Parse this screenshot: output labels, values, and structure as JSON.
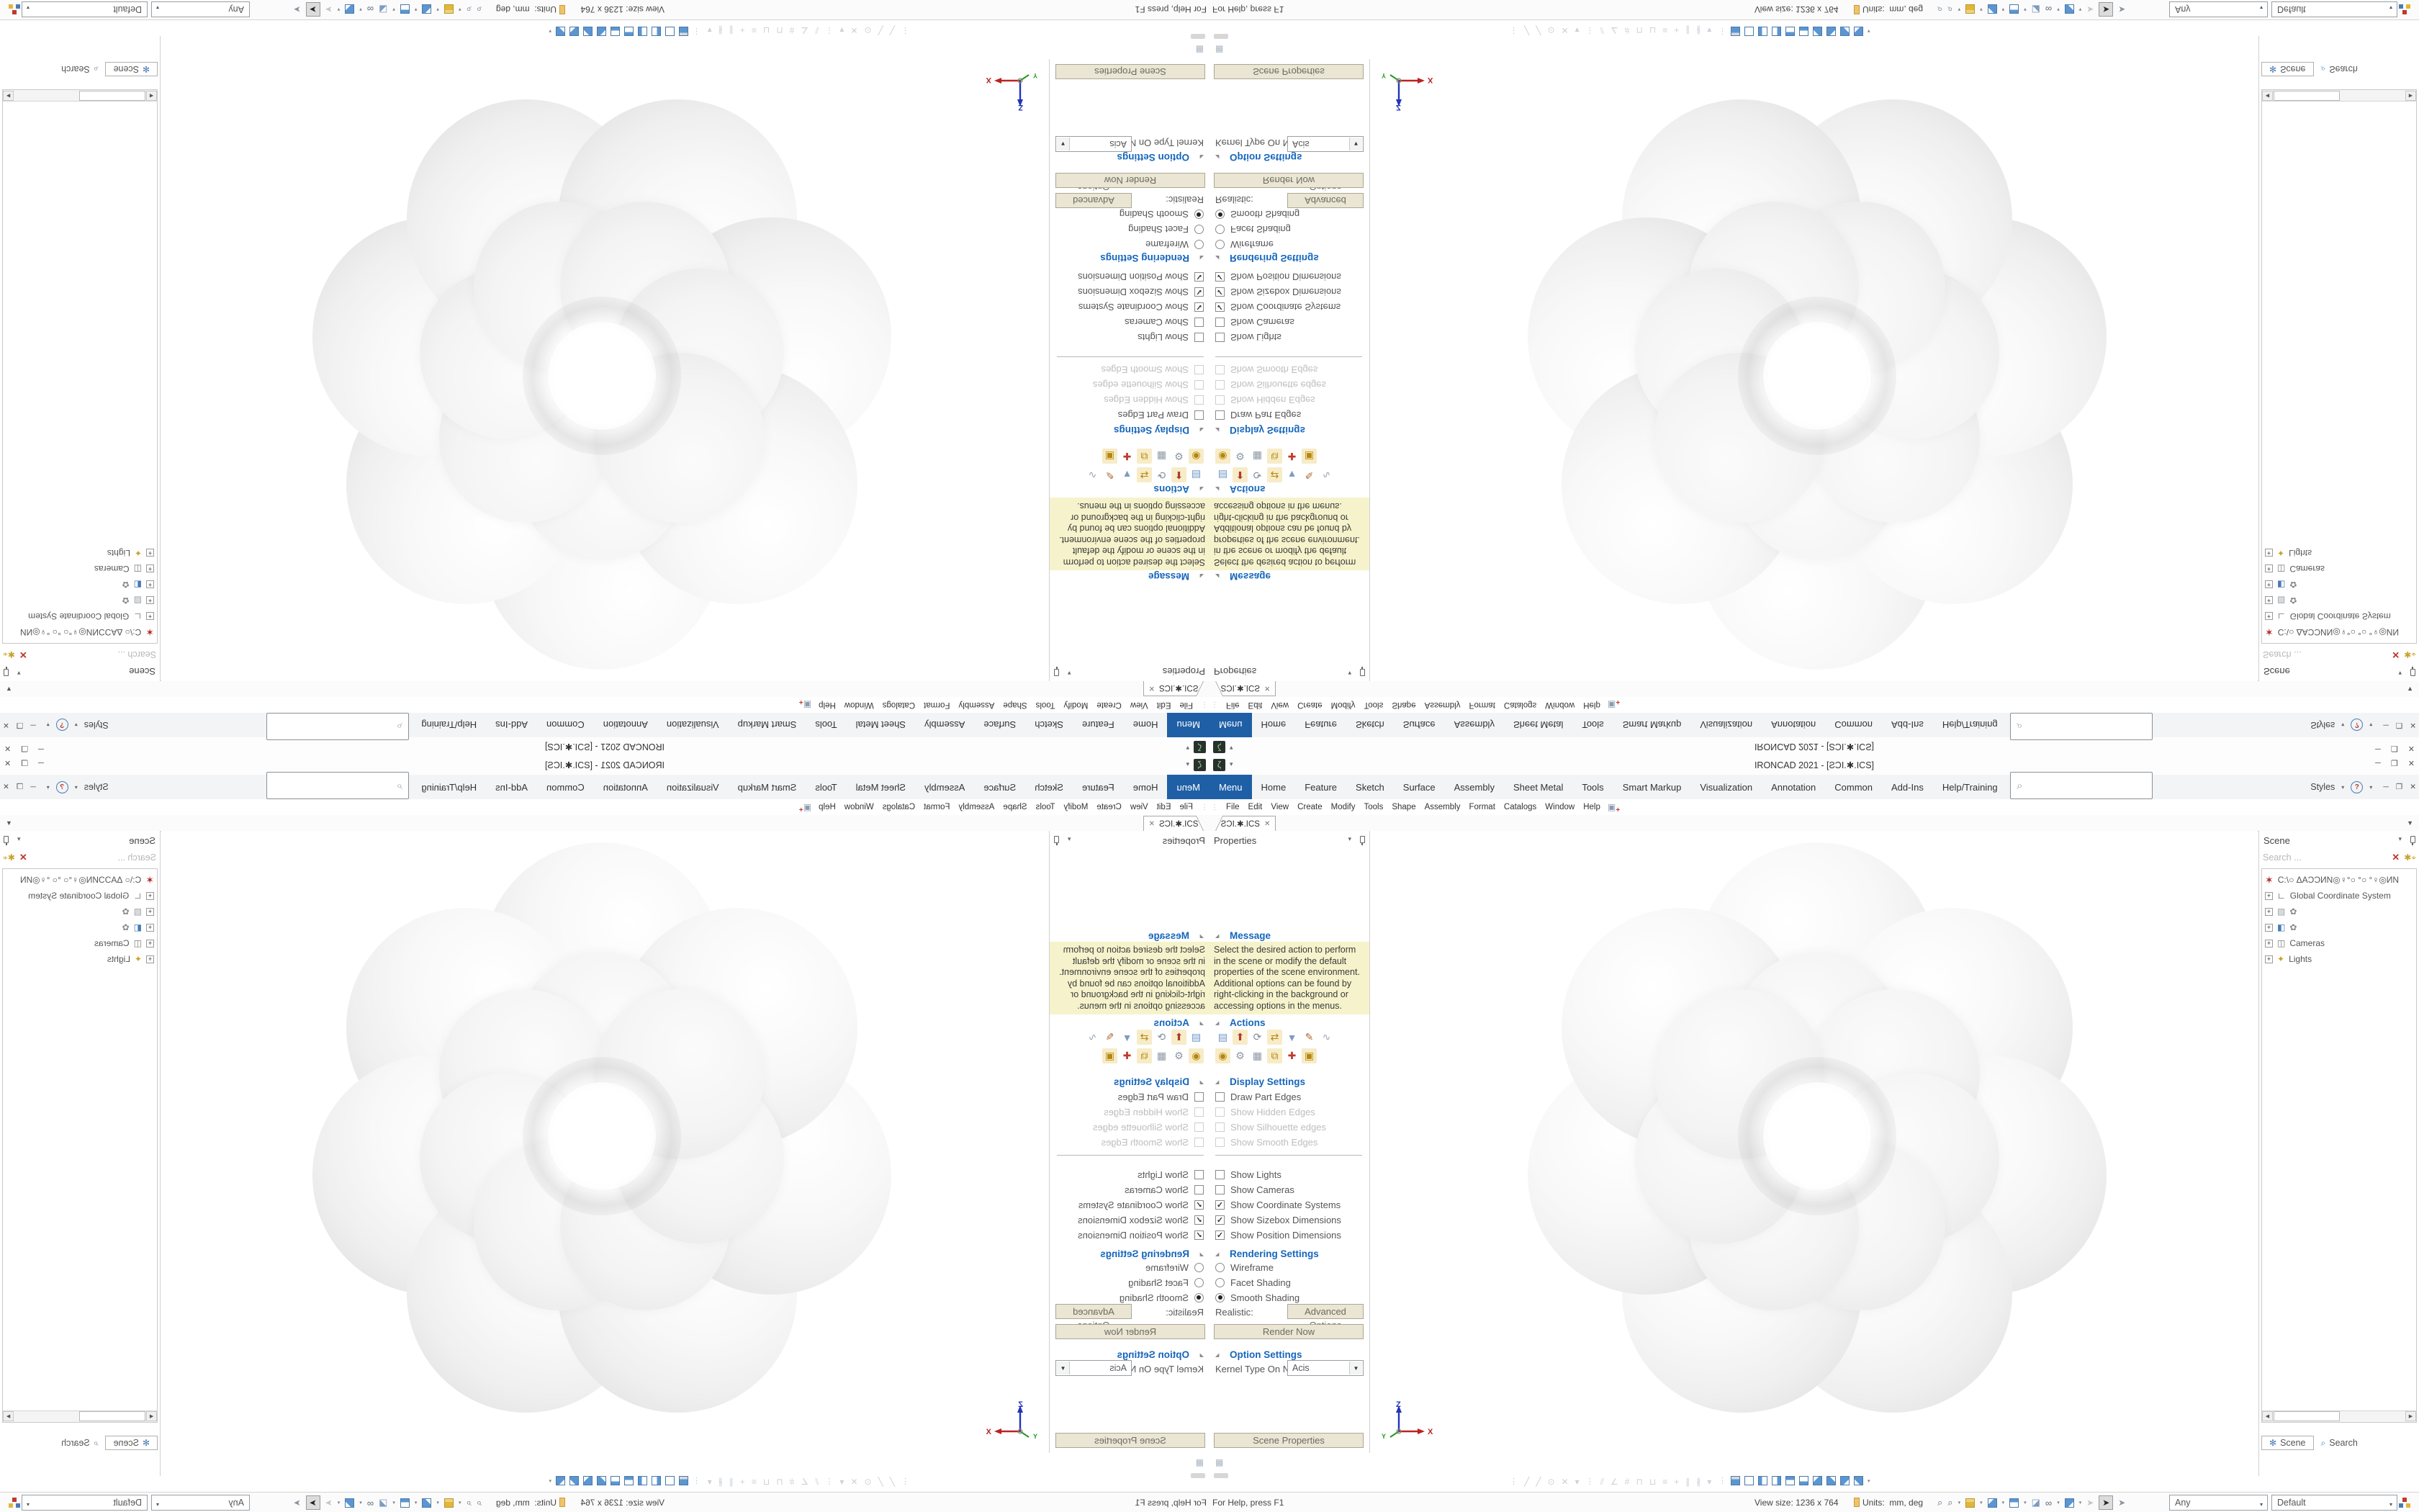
{
  "colors": {
    "accent_tab_blue": "#1f5fa6",
    "section_header_blue": "#1566bb",
    "message_bg": "#f6f3cc",
    "button_bg": "#eae6d3",
    "cube_blue": "#5b96d2",
    "cube_gold": "#e0b73a",
    "close_red": "#c0392b"
  },
  "glyphs": {
    "down_arrow": "▾",
    "overflow_arrow": "▼",
    "close": "✕",
    "minimize": "─",
    "restore": "❐",
    "grip": "⋮",
    "expander": "+",
    "left_arrow": "◀",
    "right_arrow": "▶",
    "section_tri": "◢",
    "logo": "ζ",
    "qat": "▾"
  },
  "title_bar": {
    "title": "IRONCAD 2021 - [ƧƆI.✱.ICS]"
  },
  "ribbon": {
    "tabs": [
      "Menu",
      "Home",
      "Feature",
      "Sketch",
      "Surface",
      "Assembly",
      "Sheet Metal",
      "Tools",
      "Smart Markup",
      "Visualization",
      "Annotation",
      "Common",
      "Add-Ins",
      "Help/Training"
    ],
    "active_tab": "Menu",
    "search_icon": "⌕",
    "search_value": "",
    "styles_label": "Styles",
    "help_glyph": "?"
  },
  "menubar": {
    "items": [
      "File",
      "Edit",
      "View",
      "Create",
      "Modify",
      "Tools",
      "Shape",
      "Assembly",
      "Format",
      "Catalogs",
      "Window",
      "Help"
    ],
    "new_scene_glyph": "▣",
    "new_scene_plus": "+"
  },
  "doc_tabs": {
    "active": "ƧƆI.✱.ICS"
  },
  "properties_panel": {
    "header": "Properties",
    "message_title": "Message",
    "message_text": "Select the desired action to perform in the scene or modify the default properties of the scene environment. Additional options can be found by right-clicking in the background or accessing options in the menus.",
    "actions_title": "Actions",
    "actions_row1": [
      {
        "name": "scene-properties-list-icon",
        "glyph": "▤"
      },
      {
        "name": "insert-shape-icon",
        "glyph": "⬆"
      },
      {
        "name": "spin-shape-icon",
        "glyph": "⟳"
      },
      {
        "name": "copy-shape-icon",
        "glyph": "⇄"
      },
      {
        "name": "filter-icon",
        "glyph": "▼"
      },
      {
        "name": "edit-sheet-icon",
        "glyph": "✎"
      },
      {
        "name": "curve-graph-icon",
        "glyph": "∿"
      }
    ],
    "actions_row2": [
      {
        "name": "render-scene-icon",
        "glyph": "◉"
      },
      {
        "name": "settings-gears-icon",
        "glyph": "⚙"
      },
      {
        "name": "table-grid-icon",
        "glyph": "▦"
      },
      {
        "name": "copy-boxes-icon",
        "glyph": "⧉"
      },
      {
        "name": "triad-axes-icon",
        "glyph": "✚"
      },
      {
        "name": "catalog-box-icon",
        "glyph": "▣"
      }
    ],
    "display_title": "Display Settings",
    "display_items": [
      {
        "label": "Draw Part Edges",
        "mark": "",
        "state": "enabled"
      },
      {
        "label": "Show Hidden Edges",
        "mark": "",
        "state": "disabled"
      },
      {
        "label": "Show Silhouette edges",
        "mark": "",
        "state": "disabled"
      },
      {
        "label": "Show Smooth Edges",
        "mark": "",
        "state": "disabled"
      },
      {
        "label": "Show Lights",
        "mark": "",
        "state": "enabled"
      },
      {
        "label": "Show Cameras",
        "mark": "",
        "state": "enabled"
      },
      {
        "label": "Show Coordinate Systems",
        "mark": "✓",
        "state": "enabled"
      },
      {
        "label": "Show Sizebox Dimensions",
        "mark": "✓",
        "state": "enabled"
      },
      {
        "label": "Show Position Dimensions",
        "mark": "✓",
        "state": "enabled"
      }
    ],
    "rendering_title": "Rendering Settings",
    "rendering_items": [
      {
        "label": "Wireframe",
        "selected": false
      },
      {
        "label": "Facet Shading",
        "selected": false
      },
      {
        "label": "Smooth Shading",
        "selected": true
      }
    ],
    "realistic_label": "Realistic:",
    "advanced_button": "Advanced Options",
    "render_button": "Render Now",
    "options_title": "Option Settings",
    "kernel_label": "Kernel Type On N...",
    "kernel_value": "Acis",
    "scene_props_button": "Scene Properties"
  },
  "viewport": {
    "axis_x": "X",
    "axis_y": "Y",
    "axis_z": "Z"
  },
  "scene_panel": {
    "header": "Scene",
    "search_placeholder": "Search ...",
    "clear_glyph": "✕",
    "advanced_search_glyph": "✱⌖",
    "tree": [
      {
        "label": "C:\\○ ΔAƆƆИN◎♀°○ °○ °♀◎ИN",
        "icon_glyph": "✶"
      },
      {
        "label": "Global Coordinate System",
        "icon_glyph": "∟"
      },
      {
        "label": "✿",
        "icon_glyph": "▨"
      },
      {
        "label": "✿",
        "icon_glyph": "◧"
      },
      {
        "label": "Cameras",
        "icon_glyph": "◫"
      },
      {
        "label": "Lights",
        "icon_glyph": "✦"
      }
    ],
    "tabs": [
      {
        "label": "Scene",
        "icon": "✻"
      },
      {
        "label": "Search",
        "icon": "⌕"
      }
    ]
  },
  "bottom_toolbar": {
    "sketch_glyphs": [
      "╱",
      "╱",
      "⊙",
      "✕",
      "▾",
      "⫽",
      "∠",
      "#",
      "⊓",
      "⊔",
      "≡",
      "+",
      "∥",
      "∦",
      "▾"
    ],
    "mini_icon_glyph": "▦"
  },
  "status_bar": {
    "help": "For Help, press F1",
    "view_size": "View size: 1236 x 764",
    "units_label": "Units:",
    "units_value": "mm, deg",
    "zoom_glyph": "⌕",
    "zoom2_glyph": "⌕",
    "wedge_glyph": "◪",
    "glasses_glyph": "∞",
    "arrow_glyph": "➤",
    "outline_arrow_glyph": "➤",
    "plus_glyph": "+",
    "filter_value": "Any",
    "config_value": "Default"
  }
}
